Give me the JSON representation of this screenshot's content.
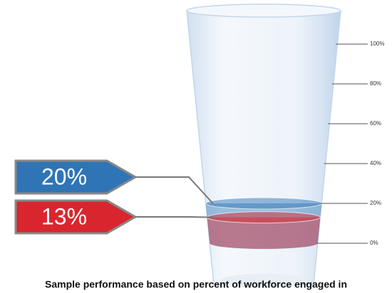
{
  "chart_data": {
    "type": "glass",
    "caption": "Sample performance based on percent of workforce engaged in",
    "values": [
      20,
      13
    ],
    "value_labels": [
      "20%",
      "13%"
    ],
    "colors": [
      "#2f75b5",
      "#d9262e"
    ],
    "ylim": [
      0,
      100
    ],
    "yticks": [
      {
        "value": 0,
        "label": "0%"
      },
      {
        "value": 20,
        "label": "20%"
      },
      {
        "value": 40,
        "label": "40%"
      },
      {
        "value": 60,
        "label": "60%"
      },
      {
        "value": 80,
        "label": "80%"
      },
      {
        "value": 100,
        "label": "100%"
      }
    ]
  }
}
